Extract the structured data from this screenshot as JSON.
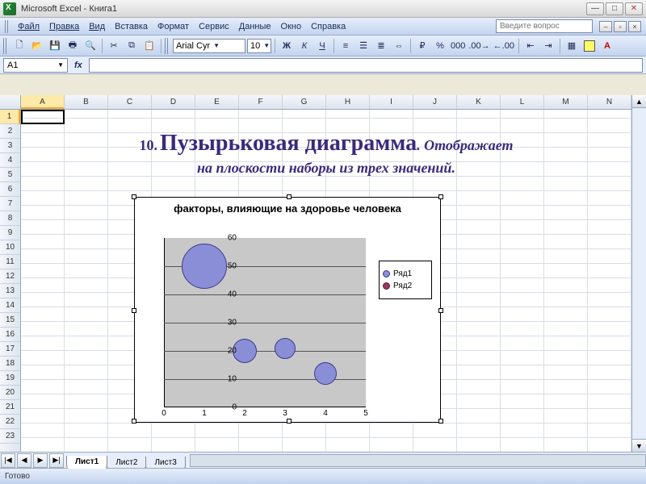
{
  "titlebar": {
    "title": "Microsoft Excel - Книга1"
  },
  "menu": {
    "file": "Файл",
    "edit": "Правка",
    "view": "Вид",
    "insert": "Вставка",
    "format": "Формат",
    "tools": "Сервис",
    "data": "Данные",
    "window": "Окно",
    "help": "Справка",
    "ask_placeholder": "Введите вопрос"
  },
  "toolbar": {
    "font_name": "Arial Cyr",
    "font_size": "10",
    "bold": "Ж",
    "italic": "К",
    "underline": "Ч"
  },
  "formula": {
    "name_box": "A1",
    "fx": "fx"
  },
  "columns": [
    "A",
    "B",
    "C",
    "D",
    "E",
    "F",
    "G",
    "H",
    "I",
    "J",
    "K",
    "L",
    "M",
    "N"
  ],
  "row_count": 23,
  "active": {
    "col": "A",
    "row": 1
  },
  "heading": {
    "number": "10.",
    "title": "Пузырьковая диаграмма",
    "suffix": ". Отображает",
    "line2": "на плоскости наборы из трех значений.",
    "number_fontsize": 18,
    "title_fontsize": 28,
    "color": "#3b2a7a"
  },
  "chart": {
    "type": "bubble",
    "title": "факторы, влияющие на здоровье человека",
    "title_fontsize": 13,
    "background_color": "#ffffff",
    "plot_bg": "#c8c8c8",
    "grid_color": "#555555",
    "axis_color": "#000000",
    "tick_fontsize": 10,
    "xlim": [
      0,
      5
    ],
    "xtick_step": 1,
    "ylim": [
      0,
      60
    ],
    "ytick_step": 10,
    "series": [
      {
        "name": "Ряд1",
        "color": "#8a8ed6",
        "border": "#3a3a8a",
        "points": [
          {
            "x": 1,
            "y": 50,
            "size": 56
          },
          {
            "x": 2,
            "y": 20,
            "size": 30
          },
          {
            "x": 3,
            "y": 21,
            "size": 26
          },
          {
            "x": 4,
            "y": 12,
            "size": 28
          }
        ]
      },
      {
        "name": "Ряд2",
        "color": "#9a3a5a",
        "border": "#5a1a3a",
        "points": []
      }
    ],
    "legend": {
      "position": "right",
      "items": [
        "Ряд1",
        "Ряд2"
      ]
    }
  },
  "tabs": {
    "items": [
      "Лист1",
      "Лист2",
      "Лист3"
    ],
    "active": 0
  },
  "status": {
    "ready": "Готово"
  }
}
